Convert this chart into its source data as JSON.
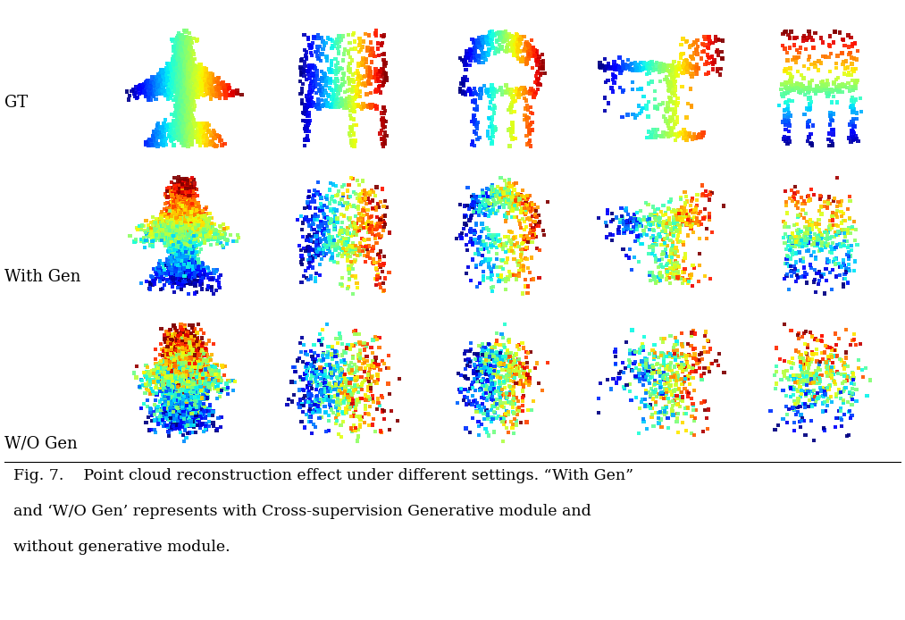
{
  "row_labels": [
    "GT",
    "With Gen",
    "W/O Gen"
  ],
  "caption_line1": "Fig. 7.    Point cloud reconstruction effect under different settings. “With Gen”",
  "caption_line2": "and ‘W/O Gen’ represents with Cross-supervision Generative module and",
  "caption_line3": "without generative module.",
  "background_color": "#ffffff",
  "caption_fontsize": 12.5,
  "label_fontsize": 13,
  "fig_width": 10.13,
  "fig_height": 6.94,
  "seed": 7,
  "marker_size_gt": 10,
  "marker_size_wg": 9,
  "marker_size_wo": 9
}
